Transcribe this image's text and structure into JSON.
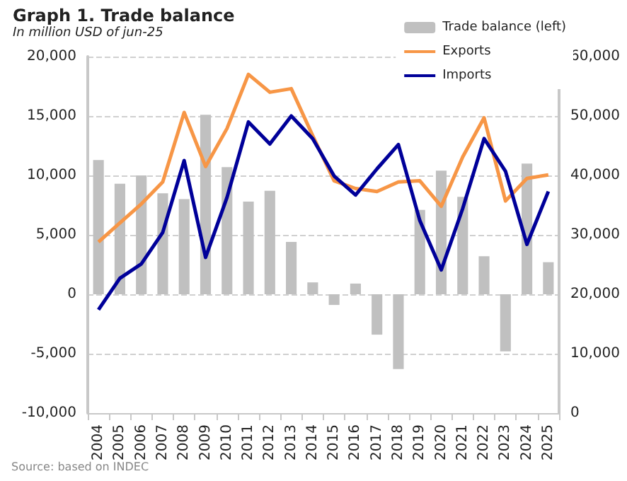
{
  "chart_data": {
    "type": "bar",
    "title": "Graph 1. Trade balance",
    "subtitle": "In million USD of jun-25",
    "categories": [
      "2004",
      "2005",
      "2006",
      "2007",
      "2008",
      "2009",
      "2010",
      "2011",
      "2012",
      "2013",
      "2014",
      "2015",
      "2016",
      "2017",
      "2018",
      "2019",
      "2020",
      "2021",
      "2022",
      "2023",
      "2024",
      "2025"
    ],
    "series": [
      {
        "name": "Trade balance (left)",
        "color": "#c0c0c0",
        "values": [
          11300,
          9300,
          10000,
          8500,
          8000,
          15100,
          10700,
          7800,
          8700,
          4400,
          1000,
          -900,
          900,
          -3400,
          -6300,
          7100,
          10400,
          8200,
          3200,
          -4800,
          11000,
          2700
        ]
      },
      {
        "name": "Exports",
        "type": "line",
        "axis": "y2",
        "color": "#f79646",
        "values": [
          28800,
          32000,
          35200,
          38900,
          50600,
          41500,
          47900,
          57000,
          54000,
          54600,
          46700,
          39100,
          37800,
          37300,
          38900,
          39100,
          34800,
          43100,
          49700,
          35700,
          39500,
          40100
        ]
      },
      {
        "name": "Imports",
        "type": "line",
        "axis": "y2",
        "color": "#000099",
        "values": [
          17400,
          22700,
          25100,
          30400,
          42500,
          26200,
          36300,
          49000,
          45300,
          50000,
          46200,
          39900,
          36700,
          41100,
          45200,
          32400,
          24100,
          34400,
          46200,
          40700,
          28400,
          37300
        ]
      }
    ],
    "ylim": [
      -10000,
      20000
    ],
    "yticks": [
      {
        "value": -10000,
        "label": "-10,000"
      },
      {
        "value": -5000,
        "label": "-5,000"
      },
      0,
      {
        "value": 5000,
        "label": "5,000"
      },
      {
        "value": 10000,
        "label": "10,000"
      },
      {
        "value": 15000,
        "label": "15,000"
      },
      {
        "value": 20000,
        "label": "20,000"
      }
    ],
    "y2lim": [
      0,
      60000
    ],
    "y2ticks": [
      0,
      {
        "value": 10000,
        "label": "10,000"
      },
      {
        "value": 20000,
        "label": "20,000"
      },
      {
        "value": 30000,
        "label": "30,000"
      },
      {
        "value": 40000,
        "label": "40,000"
      },
      {
        "value": 50000,
        "label": "50,000"
      },
      {
        "value": 60000,
        "label": "60,000"
      }
    ],
    "grid": "y",
    "legend": "top right",
    "marker": "none",
    "annotations": [
      "Source: based on INDEC"
    ]
  }
}
